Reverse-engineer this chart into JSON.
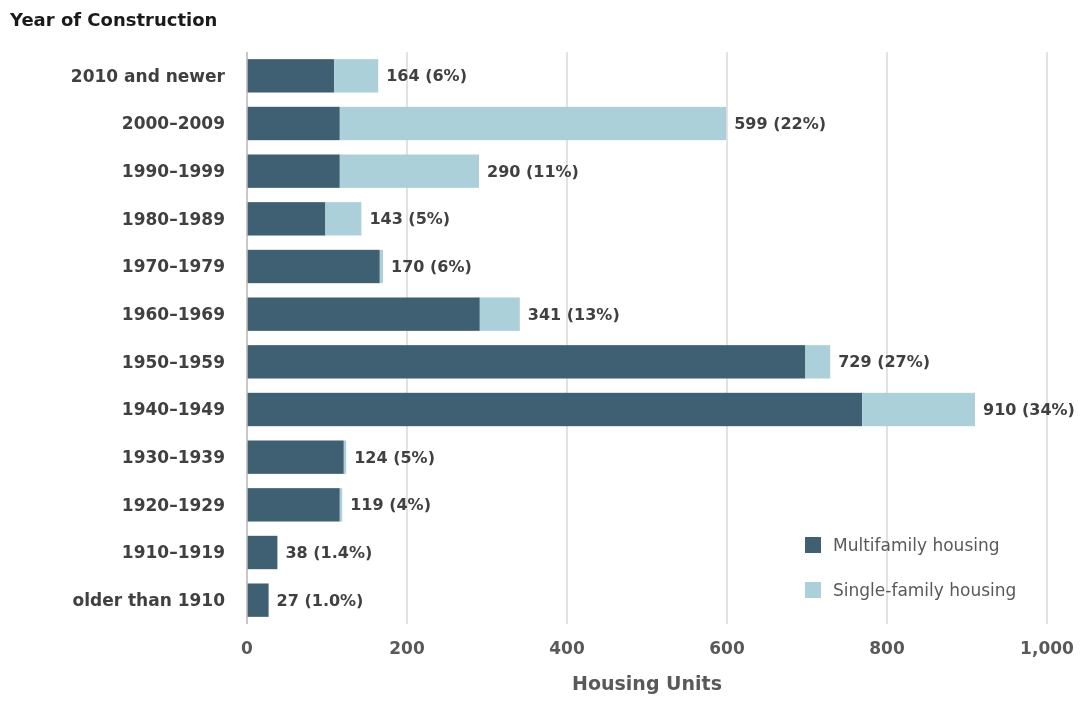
{
  "chart_data": {
    "type": "bar",
    "orientation": "horizontal",
    "stacked": true,
    "ylabel": "Year of Construction",
    "xlabel": "Housing Units",
    "categories": [
      "2010 and newer",
      "2000–2009",
      "1990–1999",
      "1980–1989",
      "1970–1979",
      "1960–1969",
      "1950–1959",
      "1940–1949",
      "1930–1939",
      "1920–1929",
      "1910–1919",
      "older than 1910"
    ],
    "series": [
      {
        "name": "Multifamily housing",
        "color": "#3f5f73",
        "values": [
          109,
          116,
          116,
          98,
          166,
          291,
          698,
          769,
          121,
          116,
          38,
          27
        ]
      },
      {
        "name": "Single-family housing",
        "color": "#abd0da",
        "values": [
          55,
          483,
          174,
          45,
          4,
          50,
          31,
          141,
          3,
          3,
          0,
          0
        ]
      }
    ],
    "totals": [
      "164 (6%)",
      "599 (22%)",
      "290 (11%)",
      "143 (5%)",
      "170 (6%)",
      "341 (13%)",
      "729 (27%)",
      "910 (34%)",
      "124 (5%)",
      "119 (4%)",
      "38 (1.4%)",
      "27 (1.0%)"
    ],
    "xlim": [
      0,
      1000
    ],
    "xticks": [
      0,
      200,
      400,
      600,
      800,
      {
        "value": 1000,
        "label": "1,000"
      }
    ],
    "grid": "x",
    "legend": "bottom right"
  }
}
